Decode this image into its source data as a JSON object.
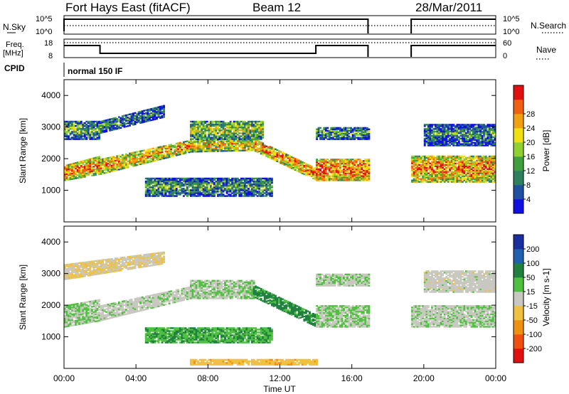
{
  "header": {
    "title": "Fort Hays East (fitACF)",
    "beam": "Beam 12",
    "date": "28/Mar/2011"
  },
  "status_panels": {
    "nsky_label": "N.Sky",
    "nsky_ticks": [
      "10^5",
      "10^0"
    ],
    "nsearch_label": "N.Search",
    "nsearch_ticks": [
      "10^5",
      "10^0"
    ],
    "freq_label_line1": "Freq.",
    "freq_label_line2": "[MHz]",
    "freq_ticks": [
      "18",
      "8"
    ],
    "nave_label": "Nave",
    "nave_ticks": [
      "60",
      "0"
    ],
    "cpid_label": "CPID",
    "cpid_value": "normal 150 IF"
  },
  "colors": {
    "power_scale": [
      "#1010e0",
      "#2050a0",
      "#2f8060",
      "#40a040",
      "#90d030",
      "#f0e010",
      "#f0a010",
      "#f06010",
      "#e01010"
    ],
    "velocity_scale": [
      "#1a2ea0",
      "#2060b0",
      "#208040",
      "#50c040",
      "#c8c8c0",
      "#f0c040",
      "#f09010",
      "#f05010",
      "#e01010"
    ]
  },
  "chart_data": [
    {
      "type": "heatmap",
      "panel": "power",
      "ylabel": "Slant Range [km]",
      "ylim": [
        0,
        4500
      ],
      "yticks": [
        "1000",
        "2000",
        "3000",
        "4000"
      ],
      "xlim": [
        0,
        24
      ],
      "colorbar_label": "Power [dB]",
      "colorbar_ticks": [
        "4",
        "8",
        "12",
        "16",
        "20",
        "24",
        "28"
      ],
      "colorbar_range": [
        0,
        32
      ],
      "bands": [
        {
          "t": [
            0.0,
            2.0
          ],
          "r0": [
            1300,
            1500
          ],
          "r1": [
            1800,
            2100
          ],
          "level": 0.8
        },
        {
          "t": [
            2.0,
            7.0
          ],
          "r0": [
            1500,
            2200
          ],
          "r1": [
            2000,
            2600
          ],
          "level": 0.75
        },
        {
          "t": [
            7.0,
            10.5
          ],
          "r0": [
            2200,
            2250
          ],
          "r1": [
            2600,
            2650
          ],
          "level": 0.7
        },
        {
          "t": [
            10.5,
            14.0
          ],
          "r0": [
            2250,
            1300
          ],
          "r1": [
            2650,
            1700
          ],
          "level": 0.8
        },
        {
          "t": [
            14.0,
            17.0
          ],
          "r0": [
            1300,
            1300
          ],
          "r1": [
            2000,
            2000
          ],
          "level": 0.85
        },
        {
          "t": [
            19.3,
            24.0
          ],
          "r0": [
            1250,
            1250
          ],
          "r1": [
            2100,
            2100
          ],
          "level": 0.8
        },
        {
          "t": [
            0.0,
            2.0
          ],
          "r0": [
            2600,
            2600
          ],
          "r1": [
            3200,
            3200
          ],
          "level": 0.45
        },
        {
          "t": [
            2.0,
            5.5
          ],
          "r0": [
            2800,
            3300
          ],
          "r1": [
            3200,
            3700
          ],
          "level": 0.35
        },
        {
          "t": [
            7.0,
            11.0
          ],
          "r0": [
            2600,
            2600
          ],
          "r1": [
            3200,
            3200
          ],
          "level": 0.55
        },
        {
          "t": [
            4.5,
            11.5
          ],
          "r0": [
            800,
            800
          ],
          "r1": [
            1400,
            1400
          ],
          "level": 0.4
        },
        {
          "t": [
            14.0,
            17.0
          ],
          "r0": [
            2600,
            2600
          ],
          "r1": [
            3000,
            3000
          ],
          "level": 0.4
        },
        {
          "t": [
            20.0,
            24.0
          ],
          "r0": [
            2400,
            2400
          ],
          "r1": [
            3100,
            3100
          ],
          "level": 0.35
        }
      ]
    },
    {
      "type": "heatmap",
      "panel": "velocity",
      "ylabel": "Slant Range [km]",
      "xlabel": "Time UT",
      "ylim": [
        0,
        4500
      ],
      "yticks": [
        "1000",
        "2000",
        "3000",
        "4000"
      ],
      "xlim": [
        0,
        24
      ],
      "xticks": [
        "00:00",
        "04:00",
        "08:00",
        "12:00",
        "16:00",
        "20:00",
        "00:00"
      ],
      "colorbar_label": "Velocity [m s-1]",
      "colorbar_ticks": [
        "200",
        "100",
        "50",
        "15",
        "-15",
        "-50",
        "-100",
        "-200"
      ],
      "bands": [
        {
          "t": [
            0.0,
            2.0
          ],
          "r0": [
            1300,
            1500
          ],
          "r1": [
            2000,
            2200
          ],
          "level": 0.45
        },
        {
          "t": [
            2.0,
            7.0
          ],
          "r0": [
            1500,
            2200
          ],
          "r1": [
            2000,
            2600
          ],
          "level": 0.48
        },
        {
          "t": [
            7.0,
            10.5
          ],
          "r0": [
            2200,
            2200
          ],
          "r1": [
            2800,
            2800
          ],
          "level": 0.45
        },
        {
          "t": [
            10.5,
            14.0
          ],
          "r0": [
            2250,
            1300
          ],
          "r1": [
            2650,
            1700
          ],
          "level": 0.3
        },
        {
          "t": [
            14.0,
            17.0
          ],
          "r0": [
            1300,
            1300
          ],
          "r1": [
            2000,
            2000
          ],
          "level": 0.45
        },
        {
          "t": [
            19.3,
            24.0
          ],
          "r0": [
            1300,
            1300
          ],
          "r1": [
            2000,
            2000
          ],
          "level": 0.47
        },
        {
          "t": [
            4.5,
            11.5
          ],
          "r0": [
            800,
            800
          ],
          "r1": [
            1300,
            1300
          ],
          "level": 0.35
        },
        {
          "t": [
            0.0,
            5.5
          ],
          "r0": [
            2800,
            3300
          ],
          "r1": [
            3300,
            3700
          ],
          "level": 0.55
        },
        {
          "t": [
            14.0,
            17.0
          ],
          "r0": [
            2600,
            2600
          ],
          "r1": [
            3000,
            3000
          ],
          "level": 0.47
        },
        {
          "t": [
            20.0,
            24.0
          ],
          "r0": [
            2400,
            2400
          ],
          "r1": [
            3100,
            3100
          ],
          "level": 0.5
        },
        {
          "t": [
            7.0,
            14.0
          ],
          "r0": [
            100,
            100
          ],
          "r1": [
            300,
            300
          ],
          "level": 0.62
        }
      ]
    }
  ]
}
